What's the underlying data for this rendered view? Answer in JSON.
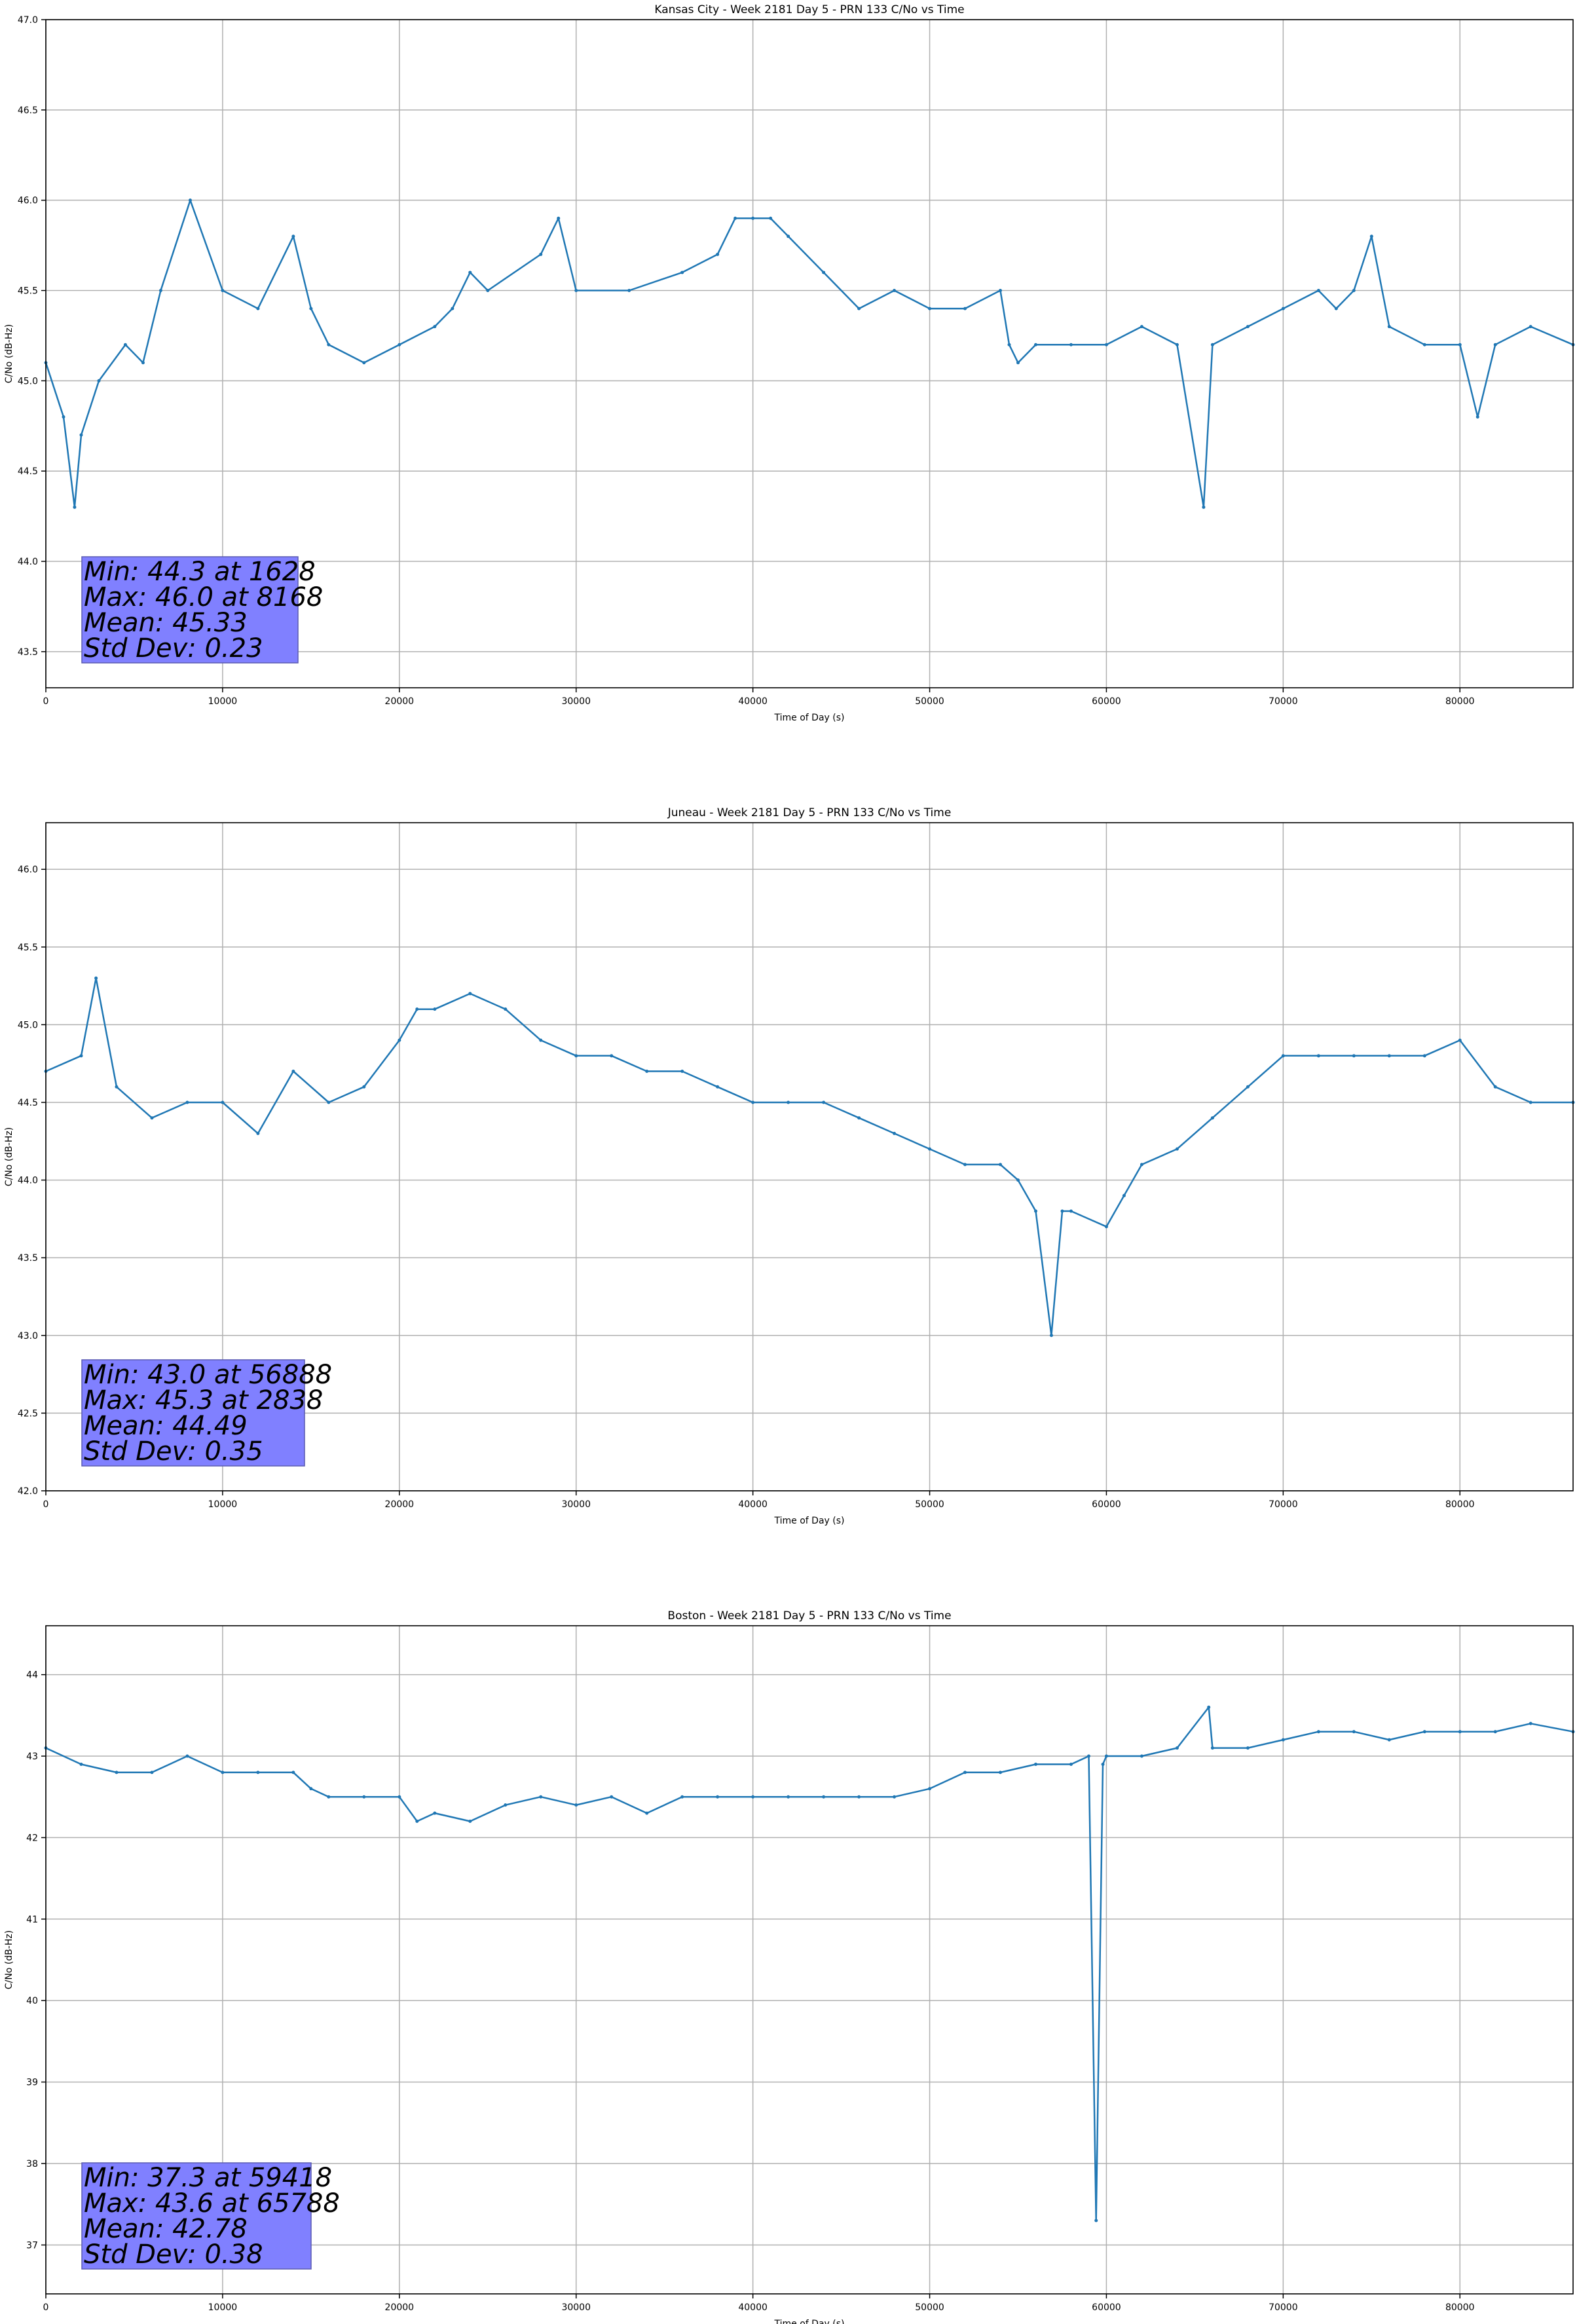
{
  "chart_data": [
    {
      "type": "line",
      "title": "Kansas City - Week 2181 Day 5 - PRN 133 C/No vs Time",
      "xlabel": "Time of Day (s)",
      "ylabel": "C/No (dB-Hz)",
      "xlim": [
        0,
        86400
      ],
      "ylim": [
        43.3,
        47.0
      ],
      "xticks": [
        0,
        10000,
        20000,
        30000,
        40000,
        50000,
        60000,
        70000,
        80000
      ],
      "yticks": [
        43.5,
        44.0,
        44.5,
        45.0,
        45.5,
        46.0,
        46.5,
        47.0
      ],
      "ytick_decimals": 1,
      "grid": true,
      "series_color": "#1f77b4",
      "series": [
        {
          "x": [
            0,
            1000,
            1628,
            2000,
            3000,
            4500,
            5500,
            6500,
            8168,
            10000,
            12000,
            14000,
            15000,
            16000,
            18000,
            20000,
            22000,
            23000,
            24000,
            25000,
            28000,
            29000,
            30000,
            33000,
            36000,
            38000,
            39000,
            40000,
            41000,
            42000,
            44000,
            46000,
            48000,
            50000,
            52000,
            54000,
            54500,
            55000,
            56000,
            58000,
            60000,
            62000,
            64000,
            65500,
            66000,
            68000,
            70000,
            72000,
            73000,
            74000,
            75000,
            76000,
            78000,
            80000,
            81000,
            82000,
            84000,
            86400
          ],
          "y": [
            45.1,
            44.8,
            44.3,
            44.7,
            45.0,
            45.2,
            45.1,
            45.5,
            46.0,
            45.5,
            45.4,
            45.8,
            45.4,
            45.2,
            45.1,
            45.2,
            45.3,
            45.4,
            45.6,
            45.5,
            45.7,
            45.9,
            45.5,
            45.5,
            45.6,
            45.7,
            45.9,
            45.9,
            45.9,
            45.8,
            45.6,
            45.4,
            45.5,
            45.4,
            45.4,
            45.5,
            45.2,
            45.1,
            45.2,
            45.2,
            45.2,
            45.3,
            45.2,
            44.3,
            45.2,
            45.3,
            45.4,
            45.5,
            45.4,
            45.5,
            45.8,
            45.3,
            45.2,
            45.2,
            44.8,
            45.2,
            45.3,
            45.2
          ]
        }
      ],
      "stats": {
        "min_label": "Min: 44.3 at 1628",
        "max_label": "Max: 46.0 at 8168",
        "mean_label": "Mean: 45.33",
        "std_label": "Std Dev: 0.23"
      }
    },
    {
      "type": "line",
      "title": "Juneau - Week 2181 Day 5 - PRN 133 C/No vs Time",
      "xlabel": "Time of Day (s)",
      "ylabel": "C/No (dB-Hz)",
      "xlim": [
        0,
        86400
      ],
      "ylim": [
        42.0,
        46.3
      ],
      "xticks": [
        0,
        10000,
        20000,
        30000,
        40000,
        50000,
        60000,
        70000,
        80000
      ],
      "yticks": [
        42.0,
        42.5,
        43.0,
        43.5,
        44.0,
        44.5,
        45.0,
        45.5,
        46.0
      ],
      "ytick_decimals": 1,
      "grid": true,
      "series_color": "#1f77b4",
      "series": [
        {
          "x": [
            0,
            2000,
            2838,
            4000,
            6000,
            8000,
            10000,
            12000,
            14000,
            16000,
            18000,
            20000,
            21000,
            22000,
            24000,
            26000,
            28000,
            30000,
            32000,
            34000,
            36000,
            38000,
            40000,
            42000,
            44000,
            46000,
            48000,
            50000,
            52000,
            54000,
            55000,
            56000,
            56888,
            57500,
            58000,
            60000,
            61000,
            62000,
            64000,
            66000,
            68000,
            70000,
            72000,
            74000,
            76000,
            78000,
            80000,
            82000,
            84000,
            86400
          ],
          "y": [
            44.7,
            44.8,
            45.3,
            44.6,
            44.4,
            44.5,
            44.5,
            44.3,
            44.7,
            44.5,
            44.6,
            44.9,
            45.1,
            45.1,
            45.2,
            45.1,
            44.9,
            44.8,
            44.8,
            44.7,
            44.7,
            44.6,
            44.5,
            44.5,
            44.5,
            44.4,
            44.3,
            44.2,
            44.1,
            44.1,
            44.0,
            43.8,
            43.0,
            43.8,
            43.8,
            43.7,
            43.9,
            44.1,
            44.2,
            44.4,
            44.6,
            44.8,
            44.8,
            44.8,
            44.8,
            44.8,
            44.9,
            44.6,
            44.5,
            44.5
          ]
        }
      ],
      "stats": {
        "min_label": "Min: 43.0 at 56888",
        "max_label": "Max: 45.3 at 2838",
        "mean_label": "Mean: 44.49",
        "std_label": "Std Dev: 0.35"
      }
    },
    {
      "type": "line",
      "title": "Boston - Week 2181 Day 5 - PRN 133 C/No vs Time",
      "xlabel": "Time of Day (s)",
      "ylabel": "C/No (dB-Hz)",
      "xlim": [
        0,
        86400
      ],
      "ylim": [
        36.4,
        44.6
      ],
      "xticks": [
        0,
        10000,
        20000,
        30000,
        40000,
        50000,
        60000,
        70000,
        80000
      ],
      "yticks": [
        37,
        38,
        39,
        40,
        41,
        42,
        43,
        44
      ],
      "ytick_decimals": 0,
      "grid": true,
      "series_color": "#1f77b4",
      "series": [
        {
          "x": [
            0,
            2000,
            4000,
            6000,
            8000,
            10000,
            12000,
            14000,
            15000,
            16000,
            18000,
            20000,
            21000,
            22000,
            24000,
            26000,
            28000,
            30000,
            32000,
            34000,
            36000,
            38000,
            40000,
            42000,
            44000,
            46000,
            48000,
            50000,
            52000,
            54000,
            56000,
            58000,
            59000,
            59418,
            59800,
            60000,
            62000,
            64000,
            65788,
            66000,
            68000,
            70000,
            72000,
            74000,
            76000,
            78000,
            80000,
            82000,
            84000,
            86400
          ],
          "y": [
            43.1,
            42.9,
            42.8,
            42.8,
            43.0,
            42.8,
            42.8,
            42.8,
            42.6,
            42.5,
            42.5,
            42.5,
            42.2,
            42.3,
            42.2,
            42.4,
            42.5,
            42.4,
            42.5,
            42.3,
            42.5,
            42.5,
            42.5,
            42.5,
            42.5,
            42.5,
            42.5,
            42.6,
            42.8,
            42.8,
            42.9,
            42.9,
            43.0,
            37.3,
            42.9,
            43.0,
            43.0,
            43.1,
            43.6,
            43.1,
            43.1,
            43.2,
            43.3,
            43.3,
            43.2,
            43.3,
            43.3,
            43.3,
            43.4,
            43.3
          ]
        }
      ],
      "stats": {
        "min_label": "Min: 37.3 at 59418",
        "max_label": "Max: 43.6 at 65788",
        "mean_label": "Mean: 42.78",
        "std_label": "Std Dev: 0.38"
      }
    }
  ]
}
